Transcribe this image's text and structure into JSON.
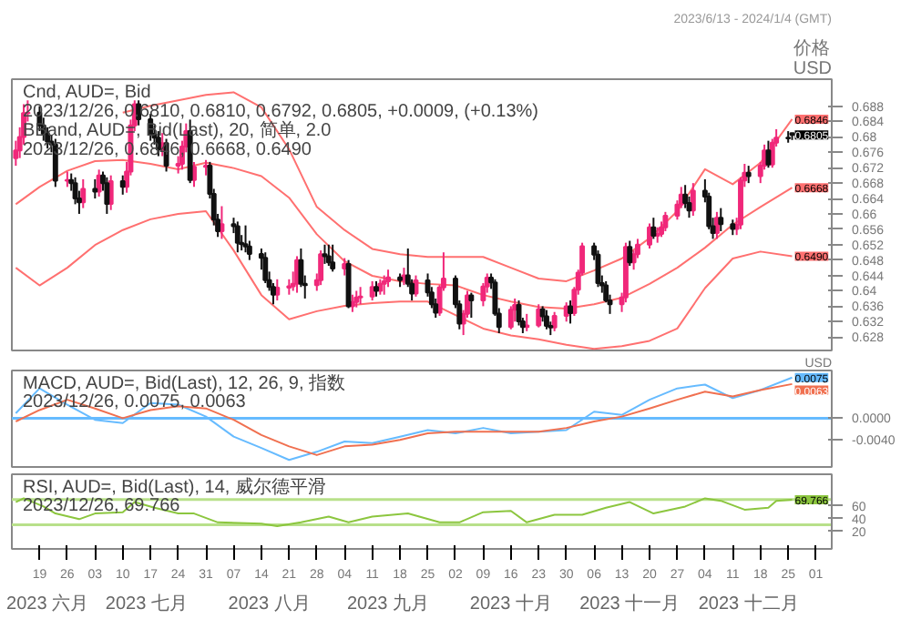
{
  "chart_data": [
    {
      "type": "candlestick",
      "title": "2023/6/13 - 2024/1/4 (GMT)",
      "ylabel": "价格\nUSD",
      "tick_labels": "y",
      "xlim": [
        "2023-06-12",
        "2024-01-05"
      ],
      "ylim": [
        0.6245,
        0.695
      ],
      "yticks": [
        0.628,
        0.632,
        0.636,
        0.64,
        0.644,
        0.648,
        0.652,
        0.656,
        0.66,
        0.664,
        0.668,
        0.672,
        0.676,
        0.68,
        0.684,
        0.688
      ],
      "annotations": [
        "Cnd, AUD=, Bid",
        "2023/12/26, 0.6810, 0.6810, 0.6792, 0.6805, +0.0009, (+0.13%)",
        "BBand, AUD=, Bid(Last), 20, 简单, 2.0",
        "2023/12/26, 0.6846, 0.6668, 0.6490"
      ],
      "x": [
        "2023-06-13",
        "2023-06-14",
        "2023-06-15",
        "2023-06-16",
        "2023-06-19",
        "2023-06-20",
        "2023-06-21",
        "2023-06-22",
        "2023-06-23",
        "2023-06-26",
        "2023-06-27",
        "2023-06-28",
        "2023-06-29",
        "2023-06-30",
        "2023-07-03",
        "2023-07-04",
        "2023-07-05",
        "2023-07-06",
        "2023-07-07",
        "2023-07-10",
        "2023-07-11",
        "2023-07-12",
        "2023-07-13",
        "2023-07-14",
        "2023-07-17",
        "2023-07-18",
        "2023-07-19",
        "2023-07-20",
        "2023-07-21",
        "2023-07-24",
        "2023-07-25",
        "2023-07-26",
        "2023-07-27",
        "2023-07-28",
        "2023-07-31",
        "2023-08-01",
        "2023-08-02",
        "2023-08-03",
        "2023-08-04",
        "2023-08-07",
        "2023-08-08",
        "2023-08-09",
        "2023-08-10",
        "2023-08-11",
        "2023-08-14",
        "2023-08-15",
        "2023-08-16",
        "2023-08-17",
        "2023-08-18",
        "2023-08-21",
        "2023-08-22",
        "2023-08-23",
        "2023-08-24",
        "2023-08-25",
        "2023-08-28",
        "2023-08-29",
        "2023-08-30",
        "2023-08-31",
        "2023-09-01",
        "2023-09-04",
        "2023-09-05",
        "2023-09-06",
        "2023-09-07",
        "2023-09-08",
        "2023-09-11",
        "2023-09-12",
        "2023-09-13",
        "2023-09-14",
        "2023-09-15",
        "2023-09-18",
        "2023-09-19",
        "2023-09-20",
        "2023-09-21",
        "2023-09-22",
        "2023-09-25",
        "2023-09-26",
        "2023-09-27",
        "2023-09-28",
        "2023-09-29",
        "2023-10-02",
        "2023-10-03",
        "2023-10-04",
        "2023-10-05",
        "2023-10-06",
        "2023-10-09",
        "2023-10-10",
        "2023-10-11",
        "2023-10-12",
        "2023-10-13",
        "2023-10-16",
        "2023-10-17",
        "2023-10-18",
        "2023-10-19",
        "2023-10-20",
        "2023-10-23",
        "2023-10-24",
        "2023-10-25",
        "2023-10-26",
        "2023-10-27",
        "2023-10-30",
        "2023-10-31",
        "2023-11-01",
        "2023-11-02",
        "2023-11-03",
        "2023-11-06",
        "2023-11-07",
        "2023-11-08",
        "2023-11-09",
        "2023-11-10",
        "2023-11-13",
        "2023-11-14",
        "2023-11-15",
        "2023-11-16",
        "2023-11-17",
        "2023-11-20",
        "2023-11-21",
        "2023-11-22",
        "2023-11-23",
        "2023-11-24",
        "2023-11-27",
        "2023-11-28",
        "2023-11-29",
        "2023-11-30",
        "2023-12-01",
        "2023-12-04",
        "2023-12-05",
        "2023-12-06",
        "2023-12-07",
        "2023-12-08",
        "2023-12-11",
        "2023-12-12",
        "2023-12-13",
        "2023-12-14",
        "2023-12-15",
        "2023-12-18",
        "2023-12-19",
        "2023-12-20",
        "2023-12-21",
        "2023-12-22",
        "2023-12-25",
        "2023-12-26"
      ],
      "ohlc": [
        [
          0.6745,
          0.679,
          0.6725,
          0.6765
        ],
        [
          0.6765,
          0.6825,
          0.6745,
          0.68
        ],
        [
          0.68,
          0.6885,
          0.678,
          0.6862
        ],
        [
          0.6862,
          0.6895,
          0.684,
          0.6863
        ],
        [
          0.6863,
          0.688,
          0.6815,
          0.683
        ],
        [
          0.683,
          0.685,
          0.679,
          0.6808
        ],
        [
          0.6808,
          0.6825,
          0.677,
          0.6788
        ],
        [
          0.6788,
          0.6805,
          0.676,
          0.678
        ],
        [
          0.678,
          0.6795,
          0.667,
          0.6686
        ],
        [
          0.6686,
          0.671,
          0.667,
          0.6688
        ],
        [
          0.6688,
          0.6705,
          0.666,
          0.668
        ],
        [
          0.668,
          0.6695,
          0.6625,
          0.664
        ],
        [
          0.664,
          0.666,
          0.66,
          0.663
        ],
        [
          0.663,
          0.669,
          0.6615,
          0.6665
        ],
        [
          0.6665,
          0.669,
          0.664,
          0.6658
        ],
        [
          0.6658,
          0.6715,
          0.6645,
          0.67
        ],
        [
          0.67,
          0.671,
          0.666,
          0.668
        ],
        [
          0.668,
          0.6695,
          0.66,
          0.6626
        ],
        [
          0.6626,
          0.67,
          0.661,
          0.6685
        ],
        [
          0.6685,
          0.67,
          0.665,
          0.667
        ],
        [
          0.667,
          0.6735,
          0.6655,
          0.671
        ],
        [
          0.671,
          0.6845,
          0.67,
          0.683
        ],
        [
          0.683,
          0.6895,
          0.6815,
          0.6885
        ],
        [
          0.6885,
          0.6895,
          0.683,
          0.6846
        ],
        [
          0.6846,
          0.686,
          0.679,
          0.6808
        ],
        [
          0.6808,
          0.683,
          0.678,
          0.6798
        ],
        [
          0.6798,
          0.6815,
          0.675,
          0.6767
        ],
        [
          0.6767,
          0.681,
          0.675,
          0.6784
        ],
        [
          0.6784,
          0.6795,
          0.671,
          0.6725
        ],
        [
          0.6725,
          0.675,
          0.6705,
          0.673
        ],
        [
          0.673,
          0.679,
          0.6715,
          0.6775
        ],
        [
          0.6775,
          0.6835,
          0.676,
          0.6815
        ],
        [
          0.6815,
          0.6845,
          0.668,
          0.6688
        ],
        [
          0.6688,
          0.6735,
          0.667,
          0.6722
        ],
        [
          0.6722,
          0.674,
          0.67,
          0.6725
        ],
        [
          0.6725,
          0.6735,
          0.664,
          0.6652
        ],
        [
          0.6652,
          0.6665,
          0.657,
          0.6585
        ],
        [
          0.6585,
          0.66,
          0.654,
          0.6555
        ],
        [
          0.6555,
          0.662,
          0.6535,
          0.6573
        ],
        [
          0.6573,
          0.659,
          0.655,
          0.6568
        ],
        [
          0.6568,
          0.658,
          0.65,
          0.6525
        ],
        [
          0.6525,
          0.6545,
          0.6505,
          0.6521
        ],
        [
          0.6521,
          0.657,
          0.65,
          0.6515
        ],
        [
          0.6515,
          0.653,
          0.648,
          0.6496
        ],
        [
          0.6496,
          0.651,
          0.6455,
          0.6486
        ],
        [
          0.6486,
          0.65,
          0.642,
          0.6428
        ],
        [
          0.6428,
          0.645,
          0.64,
          0.641
        ],
        [
          0.641,
          0.642,
          0.6365,
          0.639
        ],
        [
          0.639,
          0.643,
          0.6375,
          0.6408
        ],
        [
          0.6408,
          0.643,
          0.639,
          0.6412
        ],
        [
          0.6412,
          0.645,
          0.64,
          0.6418
        ],
        [
          0.6418,
          0.649,
          0.6395,
          0.648
        ],
        [
          0.648,
          0.651,
          0.641,
          0.6418
        ],
        [
          0.6418,
          0.644,
          0.638,
          0.6415
        ],
        [
          0.6415,
          0.6445,
          0.64,
          0.6428
        ],
        [
          0.6428,
          0.6505,
          0.6415,
          0.6495
        ],
        [
          0.6495,
          0.652,
          0.647,
          0.649
        ],
        [
          0.649,
          0.652,
          0.6465,
          0.6474
        ],
        [
          0.6474,
          0.652,
          0.645,
          0.6458
        ],
        [
          0.6458,
          0.6485,
          0.644,
          0.647
        ],
        [
          0.647,
          0.648,
          0.6355,
          0.636
        ],
        [
          0.636,
          0.639,
          0.6345,
          0.6371
        ],
        [
          0.6371,
          0.64,
          0.6357,
          0.6383
        ],
        [
          0.6383,
          0.641,
          0.6365,
          0.6385
        ],
        [
          0.6385,
          0.6425,
          0.6375,
          0.641
        ],
        [
          0.641,
          0.6425,
          0.6385,
          0.64
        ],
        [
          0.64,
          0.643,
          0.639,
          0.6418
        ],
        [
          0.6418,
          0.644,
          0.639,
          0.6425
        ],
        [
          0.6425,
          0.6455,
          0.641,
          0.6435
        ],
        [
          0.6435,
          0.6445,
          0.641,
          0.6428
        ],
        [
          0.6428,
          0.646,
          0.6415,
          0.644
        ],
        [
          0.644,
          0.651,
          0.641,
          0.6418
        ],
        [
          0.6418,
          0.643,
          0.6375,
          0.6393
        ],
        [
          0.6393,
          0.644,
          0.6385,
          0.6427
        ],
        [
          0.6427,
          0.6445,
          0.6385,
          0.6396
        ],
        [
          0.6396,
          0.641,
          0.6355,
          0.6365
        ],
        [
          0.6365,
          0.638,
          0.633,
          0.6343
        ],
        [
          0.6343,
          0.6415,
          0.6335,
          0.6409
        ],
        [
          0.6409,
          0.65,
          0.64,
          0.6432
        ],
        [
          0.6432,
          0.644,
          0.6355,
          0.6365
        ],
        [
          0.6365,
          0.6375,
          0.63,
          0.6315
        ],
        [
          0.6315,
          0.635,
          0.6285,
          0.634
        ],
        [
          0.634,
          0.64,
          0.633,
          0.6388
        ],
        [
          0.6388,
          0.6395,
          0.633,
          0.6375
        ],
        [
          0.6375,
          0.642,
          0.636,
          0.6411
        ],
        [
          0.6411,
          0.6445,
          0.6395,
          0.6434
        ],
        [
          0.6434,
          0.6445,
          0.6405,
          0.6422
        ],
        [
          0.6422,
          0.643,
          0.6335,
          0.6341
        ],
        [
          0.6341,
          0.6355,
          0.629,
          0.6306
        ],
        [
          0.6306,
          0.636,
          0.63,
          0.6351
        ],
        [
          0.6351,
          0.638,
          0.632,
          0.6363
        ],
        [
          0.6363,
          0.6375,
          0.631,
          0.6321
        ],
        [
          0.6321,
          0.633,
          0.629,
          0.6306
        ],
        [
          0.6306,
          0.634,
          0.6295,
          0.631
        ],
        [
          0.631,
          0.6365,
          0.6305,
          0.6352
        ],
        [
          0.6352,
          0.636,
          0.632,
          0.6334
        ],
        [
          0.6334,
          0.635,
          0.63,
          0.6309
        ],
        [
          0.6309,
          0.632,
          0.6285,
          0.6305
        ],
        [
          0.6305,
          0.6345,
          0.6295,
          0.6335
        ],
        [
          0.6335,
          0.637,
          0.632,
          0.636
        ],
        [
          0.636,
          0.6375,
          0.6315,
          0.6342
        ],
        [
          0.6342,
          0.641,
          0.6335,
          0.6403
        ],
        [
          0.6403,
          0.6455,
          0.639,
          0.6447
        ],
        [
          0.6447,
          0.6525,
          0.644,
          0.6516
        ],
        [
          0.6516,
          0.6525,
          0.648,
          0.6494
        ],
        [
          0.6494,
          0.6505,
          0.641,
          0.642
        ],
        [
          0.642,
          0.644,
          0.6395,
          0.6414
        ],
        [
          0.6414,
          0.6425,
          0.637,
          0.6375
        ],
        [
          0.6375,
          0.639,
          0.634,
          0.6365
        ],
        [
          0.6365,
          0.6395,
          0.6345,
          0.6383
        ],
        [
          0.6383,
          0.6525,
          0.637,
          0.6514
        ],
        [
          0.6514,
          0.653,
          0.6465,
          0.6474
        ],
        [
          0.6474,
          0.6505,
          0.6455,
          0.6495
        ],
        [
          0.6495,
          0.6535,
          0.6485,
          0.652
        ],
        [
          0.652,
          0.6575,
          0.651,
          0.6565
        ],
        [
          0.6565,
          0.659,
          0.6535,
          0.6543
        ],
        [
          0.6543,
          0.6565,
          0.6525,
          0.6548
        ],
        [
          0.6548,
          0.658,
          0.654,
          0.6565
        ],
        [
          0.6565,
          0.6605,
          0.6555,
          0.6595
        ],
        [
          0.6595,
          0.6635,
          0.6585,
          0.6624
        ],
        [
          0.6624,
          0.667,
          0.6615,
          0.665
        ],
        [
          0.665,
          0.6675,
          0.6615,
          0.6628
        ],
        [
          0.6628,
          0.6645,
          0.659,
          0.6609
        ],
        [
          0.6609,
          0.668,
          0.6595,
          0.666
        ],
        [
          0.666,
          0.669,
          0.663,
          0.6645
        ],
        [
          0.6645,
          0.6655,
          0.656,
          0.6568
        ],
        [
          0.6568,
          0.659,
          0.6535,
          0.655
        ],
        [
          0.655,
          0.6605,
          0.6535,
          0.659
        ],
        [
          0.659,
          0.6615,
          0.6555,
          0.6573
        ],
        [
          0.6573,
          0.6585,
          0.6545,
          0.6561
        ],
        [
          0.6561,
          0.659,
          0.6545,
          0.6572
        ],
        [
          0.6572,
          0.6695,
          0.656,
          0.6687
        ],
        [
          0.6687,
          0.673,
          0.667,
          0.6707
        ],
        [
          0.6707,
          0.6725,
          0.668,
          0.6698
        ],
        [
          0.6698,
          0.6735,
          0.668,
          0.6725
        ],
        [
          0.6725,
          0.678,
          0.6715,
          0.6765
        ],
        [
          0.6765,
          0.679,
          0.672,
          0.6728
        ],
        [
          0.6728,
          0.6795,
          0.672,
          0.6785
        ],
        [
          0.6785,
          0.682,
          0.6775,
          0.6798
        ],
        [
          0.6798,
          0.6815,
          0.6785,
          0.6796
        ],
        [
          0.681,
          0.681,
          0.6792,
          0.6805
        ]
      ],
      "value_labels": [
        null,
        null,
        null,
        null,
        null,
        null,
        null,
        null,
        null,
        null,
        null,
        null,
        null,
        null,
        null,
        null,
        null,
        null,
        null,
        null,
        null,
        null,
        null,
        null,
        null,
        null,
        null,
        null,
        null,
        null,
        null,
        null,
        null,
        null,
        null,
        null,
        null,
        null,
        null,
        null,
        null,
        null,
        null,
        null,
        null,
        null,
        null,
        null,
        null,
        null,
        null,
        null,
        null,
        null,
        null,
        null,
        null,
        null,
        null,
        null,
        null,
        null,
        null,
        null,
        null,
        null,
        null,
        null,
        null,
        null,
        null,
        null,
        null,
        null,
        null,
        null,
        null,
        null,
        null,
        null,
        null,
        null,
        null,
        null,
        null,
        null,
        null,
        null,
        null,
        null,
        null,
        null,
        null,
        null,
        null,
        null,
        null,
        null,
        null,
        null,
        null,
        null,
        null,
        null,
        null,
        null,
        null,
        null,
        null,
        null,
        null,
        null,
        null,
        null,
        null,
        null,
        null,
        null,
        null,
        null,
        null,
        null,
        null,
        null,
        null,
        null,
        null,
        null,
        null,
        null,
        null,
        null,
        null,
        null,
        null,
        null,
        null,
        null,
        null,
        null,
        "0.6805"
      ],
      "series": [
        {
          "type": "line",
          "color": "#ff7070",
          "x": [
            "2023-07-10",
            "2023-07-17",
            "2023-07-24",
            "2023-07-31",
            "2023-08-07",
            "2023-08-14",
            "2023-08-21",
            "2023-08-28",
            "2023-09-04",
            "2023-09-11",
            "2023-09-18",
            "2023-09-25",
            "2023-10-02",
            "2023-10-09",
            "2023-10-16",
            "2023-10-23",
            "2023-10-30",
            "2023-11-06",
            "2023-11-13",
            "2023-11-20",
            "2023-11-27",
            "2023-12-04",
            "2023-12-11",
            "2023-12-18",
            "2023-12-26"
          ],
          "values": [
            0.6863,
            0.6881,
            0.6895,
            0.6909,
            0.6916,
            0.6877,
            0.6768,
            0.6618,
            0.6558,
            0.6509,
            0.6495,
            0.6488,
            0.6488,
            0.6488,
            0.646,
            0.6432,
            0.6425,
            0.6453,
            0.6484,
            0.6537,
            0.6607,
            0.6716,
            0.6677,
            0.6733,
            0.6846
          ],
          "value_labels": [
            null,
            null,
            null,
            null,
            null,
            null,
            null,
            null,
            null,
            null,
            null,
            null,
            null,
            null,
            null,
            null,
            null,
            null,
            null,
            null,
            null,
            null,
            null,
            null,
            "0.6846"
          ]
        },
        {
          "type": "line",
          "color": "#ff7070",
          "x": [
            "2023-06-13",
            "2023-06-19",
            "2023-06-26",
            "2023-07-03",
            "2023-07-10",
            "2023-07-17",
            "2023-07-24",
            "2023-07-31",
            "2023-08-07",
            "2023-08-14",
            "2023-08-21",
            "2023-08-28",
            "2023-09-04",
            "2023-09-11",
            "2023-09-18",
            "2023-09-25",
            "2023-10-02",
            "2023-10-09",
            "2023-10-16",
            "2023-10-23",
            "2023-10-30",
            "2023-11-06",
            "2023-11-13",
            "2023-11-20",
            "2023-11-27",
            "2023-12-04",
            "2023-12-11",
            "2023-12-18",
            "2023-12-26"
          ],
          "values": [
            0.6625,
            0.667,
            0.6712,
            0.6737,
            0.674,
            0.673,
            0.6716,
            0.6733,
            0.6719,
            0.6698,
            0.6642,
            0.6547,
            0.6477,
            0.6439,
            0.6425,
            0.6418,
            0.6414,
            0.6389,
            0.6372,
            0.6358,
            0.6354,
            0.6365,
            0.6382,
            0.6418,
            0.646,
            0.6512,
            0.6572,
            0.6618,
            0.6668
          ],
          "value_labels": [
            null,
            null,
            null,
            null,
            null,
            null,
            null,
            null,
            null,
            null,
            null,
            null,
            null,
            null,
            null,
            null,
            null,
            null,
            null,
            null,
            null,
            null,
            null,
            null,
            null,
            null,
            null,
            null,
            "0.6668"
          ]
        },
        {
          "type": "line",
          "color": "#ff7070",
          "x": [
            "2023-06-13",
            "2023-06-19",
            "2023-06-26",
            "2023-07-03",
            "2023-07-10",
            "2023-07-17",
            "2023-07-24",
            "2023-07-31",
            "2023-08-07",
            "2023-08-14",
            "2023-08-21",
            "2023-08-28",
            "2023-09-04",
            "2023-09-11",
            "2023-09-18",
            "2023-09-25",
            "2023-10-02",
            "2023-10-09",
            "2023-10-16",
            "2023-10-23",
            "2023-10-30",
            "2023-11-06",
            "2023-11-13",
            "2023-11-20",
            "2023-11-27",
            "2023-12-04",
            "2023-12-11",
            "2023-12-18",
            "2023-12-26"
          ],
          "values": [
            0.646,
            0.6414,
            0.646,
            0.6519,
            0.6558,
            0.6586,
            0.66,
            0.6607,
            0.6505,
            0.6389,
            0.6326,
            0.6347,
            0.6361,
            0.6368,
            0.6372,
            0.6372,
            0.6337,
            0.6302,
            0.6284,
            0.6274,
            0.626,
            0.6249,
            0.6256,
            0.627,
            0.6302,
            0.6407,
            0.6484,
            0.6502,
            0.649
          ],
          "value_labels": [
            null,
            null,
            null,
            null,
            null,
            null,
            null,
            null,
            null,
            null,
            null,
            null,
            null,
            null,
            null,
            null,
            null,
            null,
            null,
            null,
            null,
            null,
            null,
            null,
            null,
            null,
            null,
            null,
            "0.6490"
          ]
        }
      ]
    },
    {
      "type": "line",
      "ylabel": "USD",
      "tick_labels": "y",
      "xlim": [
        "2023-06-12",
        "2024-01-05"
      ],
      "ylim": [
        -0.009,
        0.0088
      ],
      "yticks": [
        {
          "value": -0.004,
          "label": "-0.0040"
        },
        {
          "value": 0,
          "label": "0.0000"
        }
      ],
      "ref_lines": [
        {
          "axis": "y",
          "value": 0,
          "color": "#66bbff"
        }
      ],
      "annotations": [
        "MACD, AUD=, Bid(Last), 12, 26, 9, 指数",
        "2023/12/26, 0.0075, 0.0063"
      ],
      "x": [
        "2023-06-13",
        "2023-06-19",
        "2023-06-26",
        "2023-07-03",
        "2023-07-10",
        "2023-07-17",
        "2023-07-24",
        "2023-07-31",
        "2023-08-07",
        "2023-08-14",
        "2023-08-21",
        "2023-08-28",
        "2023-09-04",
        "2023-09-11",
        "2023-09-18",
        "2023-09-25",
        "2023-10-02",
        "2023-10-09",
        "2023-10-16",
        "2023-10-23",
        "2023-10-30",
        "2023-11-06",
        "2023-11-13",
        "2023-11-20",
        "2023-11-27",
        "2023-12-04",
        "2023-12-11",
        "2023-12-18",
        "2023-12-26"
      ],
      "series": [
        {
          "color": "#66bbff",
          "values": [
            0.0009,
            0.0055,
            0.0025,
            -0.0003,
            -0.0009,
            0.0028,
            0.0025,
            0.0003,
            -0.0034,
            -0.0055,
            -0.0077,
            -0.0062,
            -0.0043,
            -0.0046,
            -0.0034,
            -0.0022,
            -0.0028,
            -0.0018,
            -0.0028,
            -0.0025,
            -0.0022,
            0.0012,
            0.0006,
            0.0034,
            0.0055,
            0.0062,
            0.0037,
            0.0052,
            0.0075
          ],
          "value_labels": [
            null,
            null,
            null,
            null,
            null,
            null,
            null,
            null,
            null,
            null,
            null,
            null,
            null,
            null,
            null,
            null,
            null,
            null,
            null,
            null,
            null,
            null,
            null,
            null,
            null,
            null,
            null,
            null,
            "0.0075"
          ]
        },
        {
          "color": "#f07050",
          "values": [
            -0.0006,
            0.0015,
            0.0034,
            0.0018,
            0.0,
            0.0015,
            0.0022,
            0.0018,
            -0.0003,
            -0.0031,
            -0.0052,
            -0.0068,
            -0.0052,
            -0.0049,
            -0.004,
            -0.0028,
            -0.0025,
            -0.0025,
            -0.0025,
            -0.0025,
            -0.0018,
            -0.0006,
            0.0003,
            0.0018,
            0.0034,
            0.0049,
            0.004,
            0.0052,
            0.0063
          ],
          "value_labels": [
            null,
            null,
            null,
            null,
            null,
            null,
            null,
            null,
            null,
            null,
            null,
            null,
            null,
            null,
            null,
            null,
            null,
            null,
            null,
            null,
            null,
            null,
            null,
            null,
            null,
            null,
            null,
            null,
            "0.0063"
          ]
        }
      ]
    },
    {
      "type": "line",
      "xlim": [
        "2023-06-12",
        "2024-01-05"
      ],
      "ylim": [
        -8,
        110
      ],
      "yticks": [
        20,
        40,
        60
      ],
      "xticks": [
        {
          "value": "2023-06-19",
          "label": "19"
        },
        {
          "value": "2023-06-26",
          "label": "26"
        },
        {
          "value": "2023-07-03",
          "label": "03"
        },
        {
          "value": "2023-07-10",
          "label": "10"
        },
        {
          "value": "2023-07-17",
          "label": "17"
        },
        {
          "value": "2023-07-24",
          "label": "24"
        },
        {
          "value": "2023-07-31",
          "label": "31"
        },
        {
          "value": "2023-08-07",
          "label": "07"
        },
        {
          "value": "2023-08-14",
          "label": "14"
        },
        {
          "value": "2023-08-21",
          "label": "21"
        },
        {
          "value": "2023-08-28",
          "label": "28"
        },
        {
          "value": "2023-09-04",
          "label": "04"
        },
        {
          "value": "2023-09-11",
          "label": "11"
        },
        {
          "value": "2023-09-18",
          "label": "18"
        },
        {
          "value": "2023-09-25",
          "label": "25"
        },
        {
          "value": "2023-10-02",
          "label": "02"
        },
        {
          "value": "2023-10-09",
          "label": "09"
        },
        {
          "value": "2023-10-16",
          "label": "16"
        },
        {
          "value": "2023-10-23",
          "label": "23"
        },
        {
          "value": "2023-10-30",
          "label": "30"
        },
        {
          "value": "2023-11-06",
          "label": "06"
        },
        {
          "value": "2023-11-13",
          "label": "13"
        },
        {
          "value": "2023-11-20",
          "label": "20"
        },
        {
          "value": "2023-11-27",
          "label": "27"
        },
        {
          "value": "2023-12-04",
          "label": "04"
        },
        {
          "value": "2023-12-11",
          "label": "11"
        },
        {
          "value": "2023-12-18",
          "label": "18"
        },
        {
          "value": "2023-12-25",
          "label": "25"
        },
        {
          "value": "2024-01-01",
          "label": "01"
        }
      ],
      "x2lim": [
        "2023-06-12",
        "2024-01-05"
      ],
      "x2ticks": [
        {
          "value": "2023-06-21",
          "label": "2023 六月"
        },
        {
          "value": "2023-07-16",
          "label": "2023 七月"
        },
        {
          "value": "2023-08-16",
          "label": "2023 八月"
        },
        {
          "value": "2023-09-15",
          "label": "2023 九月"
        },
        {
          "value": "2023-10-16",
          "label": "2023 十月"
        },
        {
          "value": "2023-11-15",
          "label": "2023 十一月"
        },
        {
          "value": "2023-12-15",
          "label": "2023 十二月"
        }
      ],
      "ref_lines": [
        {
          "axis": "y",
          "value": 70,
          "color": "#b8e08a"
        },
        {
          "axis": "y",
          "value": 30,
          "color": "#b8e08a"
        }
      ],
      "annotations": [
        "RSI, AUD=, Bid(Last), 14, 威尔德平滑",
        "2023/12/26, 69.766"
      ],
      "series": [
        {
          "color": "#8cc63f",
          "x": [
            "2023-06-13",
            "2023-06-15",
            "2023-06-20",
            "2023-06-23",
            "2023-06-29",
            "2023-07-03",
            "2023-07-10",
            "2023-07-13",
            "2023-07-18",
            "2023-07-24",
            "2023-07-28",
            "2023-08-03",
            "2023-08-14",
            "2023-08-18",
            "2023-08-24",
            "2023-08-31",
            "2023-09-05",
            "2023-09-11",
            "2023-09-20",
            "2023-09-28",
            "2023-10-03",
            "2023-10-09",
            "2023-10-16",
            "2023-10-20",
            "2023-10-27",
            "2023-11-03",
            "2023-11-09",
            "2023-11-15",
            "2023-11-21",
            "2023-11-29",
            "2023-12-04",
            "2023-12-08",
            "2023-12-14",
            "2023-12-20",
            "2023-12-22",
            "2023-12-26"
          ],
          "values": [
            66,
            72,
            59,
            48,
            39,
            48,
            50,
            66,
            57,
            48,
            48,
            34,
            32,
            28,
            34,
            43,
            34,
            43,
            48,
            34,
            34,
            50,
            52,
            34,
            46,
            46,
            57,
            66,
            48,
            59,
            72,
            68,
            54,
            57,
            68,
            69.766
          ],
          "value_labels": [
            null,
            null,
            null,
            null,
            null,
            null,
            null,
            null,
            null,
            null,
            null,
            null,
            null,
            null,
            null,
            null,
            null,
            null,
            null,
            null,
            null,
            null,
            null,
            null,
            null,
            null,
            null,
            null,
            null,
            null,
            null,
            null,
            null,
            null,
            null,
            "69.766"
          ]
        }
      ]
    }
  ]
}
